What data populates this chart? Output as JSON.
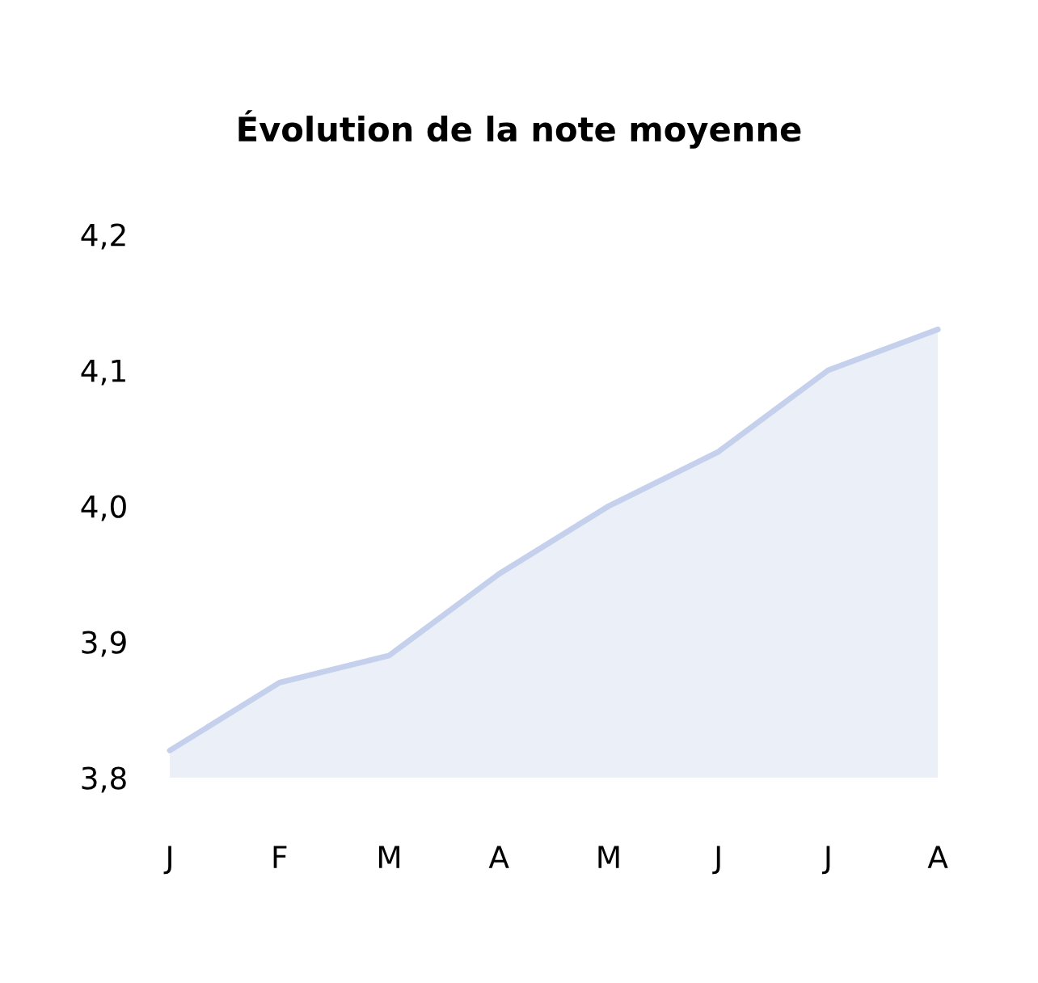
{
  "chart_data": {
    "type": "area",
    "title": "Évolution de la note moyenne",
    "categories": [
      "J",
      "F",
      "M",
      "A",
      "M",
      "J",
      "J",
      "A"
    ],
    "series": [
      {
        "color": "#c5d0ec",
        "values": [
          3.82,
          3.87,
          3.89,
          3.95,
          4.0,
          4.04,
          4.1,
          4.13
        ]
      }
    ],
    "ylim": [
      3.8,
      4.2
    ],
    "yticks": [
      {
        "value": 3.8,
        "label": "3,8"
      },
      {
        "value": 3.9,
        "label": "3,9"
      },
      {
        "value": 4.0,
        "label": "4,0"
      },
      {
        "value": 4.1,
        "label": "4,1"
      },
      {
        "value": 4.2,
        "label": "4,2"
      }
    ],
    "grid": false,
    "legend": false
  }
}
